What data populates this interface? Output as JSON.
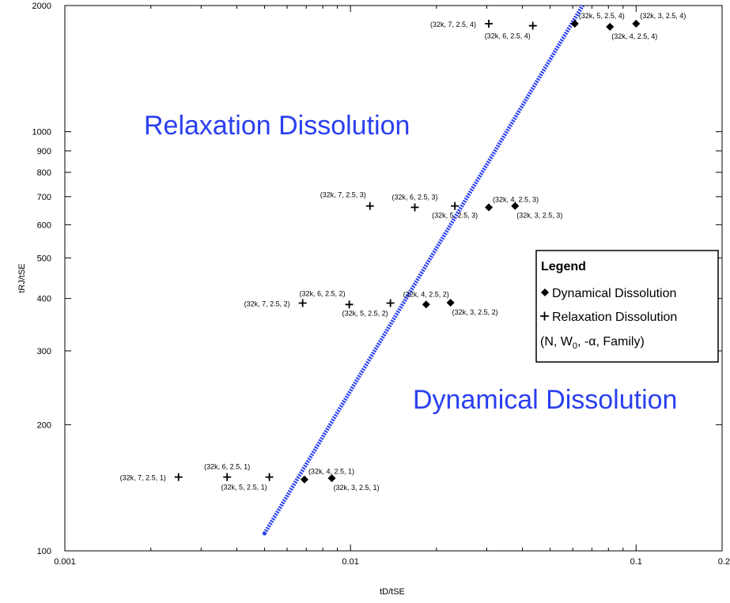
{
  "chart_data": {
    "type": "scatter",
    "xlabel": "tD/tSE",
    "ylabel": "tRJ/tSE",
    "x_scale": "log",
    "y_scale": "log",
    "xlim": [
      0.001,
      0.2
    ],
    "ylim": [
      100,
      2000
    ],
    "x_ticks": [
      {
        "value": 0.001,
        "label": "0.001"
      },
      {
        "value": 0.01,
        "label": "0.01"
      },
      {
        "value": 0.1,
        "label": "0.1"
      },
      {
        "value": 0.2,
        "label": "0.2"
      }
    ],
    "y_ticks": [
      {
        "value": 100,
        "label": "100"
      },
      {
        "value": 200,
        "label": "200"
      },
      {
        "value": 300,
        "label": "300"
      },
      {
        "value": 400,
        "label": "400"
      },
      {
        "value": 500,
        "label": "500"
      },
      {
        "value": 600,
        "label": "600"
      },
      {
        "value": 700,
        "label": "700"
      },
      {
        "value": 800,
        "label": "800"
      },
      {
        "value": 900,
        "label": "900"
      },
      {
        "value": 1000,
        "label": "1000"
      },
      {
        "value": 2000,
        "label": "2000"
      }
    ],
    "colors": {
      "region_text": "#2a3ff0",
      "divider": "#2a3ff0",
      "marker": "#000000"
    },
    "region_labels": {
      "relaxation": "Relaxation Dissolution",
      "dynamical": "Dynamical Dissolution"
    },
    "divider_line": {
      "x": [
        0.005,
        0.065
      ],
      "y": [
        110,
        2000
      ]
    },
    "legend": {
      "title": "Legend",
      "items": [
        {
          "marker": "diamond",
          "label": "Dynamical Dissolution"
        },
        {
          "marker": "plus",
          "label": "Relaxation Dissolution"
        }
      ],
      "params": {
        "prefix": "(N, W",
        "subscript": "0",
        "suffix": ", -α, Family)"
      },
      "placement": "right"
    },
    "series": [
      {
        "marker": "plus",
        "points": [
          {
            "x": 0.0025,
            "y": 150,
            "label": "(32k, 7, 2.5, 1)",
            "label_pos": "left"
          },
          {
            "x": 0.0037,
            "y": 150,
            "label": "(32k, 6, 2.5, 1)",
            "label_pos": "above"
          },
          {
            "x": 0.0052,
            "y": 150,
            "label": "(32k, 5, 2.5, 1)",
            "label_pos": "below-left"
          },
          {
            "x": 0.0068,
            "y": 390,
            "label": "(32k, 7, 2.5, 2)",
            "label_pos": "left"
          },
          {
            "x": 0.0099,
            "y": 387,
            "label": "(32k, 6, 2.5, 2)",
            "label_pos": "above-left"
          },
          {
            "x": 0.0138,
            "y": 390,
            "label": "(32k, 5, 2.5, 2)",
            "label_pos": "below-left"
          },
          {
            "x": 0.0117,
            "y": 665,
            "label": "(32k, 7, 2.5, 3)",
            "label_pos": "above-left"
          },
          {
            "x": 0.0168,
            "y": 660,
            "label": "(32k, 6, 2.5, 3)",
            "label_pos": "above"
          },
          {
            "x": 0.0232,
            "y": 665,
            "label": "(32k, 5, 2.5, 3)",
            "label_pos": "below"
          },
          {
            "x": 0.0305,
            "y": 1810,
            "label": "(32k, 7, 2.5, 4)",
            "label_pos": "left"
          },
          {
            "x": 0.0435,
            "y": 1790,
            "label": "(32k, 6, 2.5, 4)",
            "label_pos": "below-left"
          }
        ]
      },
      {
        "marker": "diamond",
        "points": [
          {
            "x": 0.0069,
            "y": 148,
            "label": "(32k, 4, 2.5, 1)",
            "label_pos": "above-right"
          },
          {
            "x": 0.0086,
            "y": 149,
            "label": "(32k, 3, 2.5, 1)",
            "label_pos": "below-right"
          },
          {
            "x": 0.0184,
            "y": 387,
            "label": "(32k, 4, 2.5, 2)",
            "label_pos": "above"
          },
          {
            "x": 0.0224,
            "y": 391,
            "label": "(32k, 3, 2.5, 2)",
            "label_pos": "below-right"
          },
          {
            "x": 0.0305,
            "y": 660,
            "label": "(32k, 4, 2.5, 3)",
            "label_pos": "above-right"
          },
          {
            "x": 0.0377,
            "y": 665,
            "label": "(32k, 3, 2.5, 3)",
            "label_pos": "below-right"
          },
          {
            "x": 0.061,
            "y": 1810,
            "label": "(32k, 5, 2.5, 4)",
            "label_pos": "above-right"
          },
          {
            "x": 0.081,
            "y": 1780,
            "label": "(32k, 4, 2.5, 4)",
            "label_pos": "below-right"
          },
          {
            "x": 0.1,
            "y": 1810,
            "label": "(32k, 3, 2.5, 4)",
            "label_pos": "above-right"
          }
        ]
      }
    ]
  }
}
